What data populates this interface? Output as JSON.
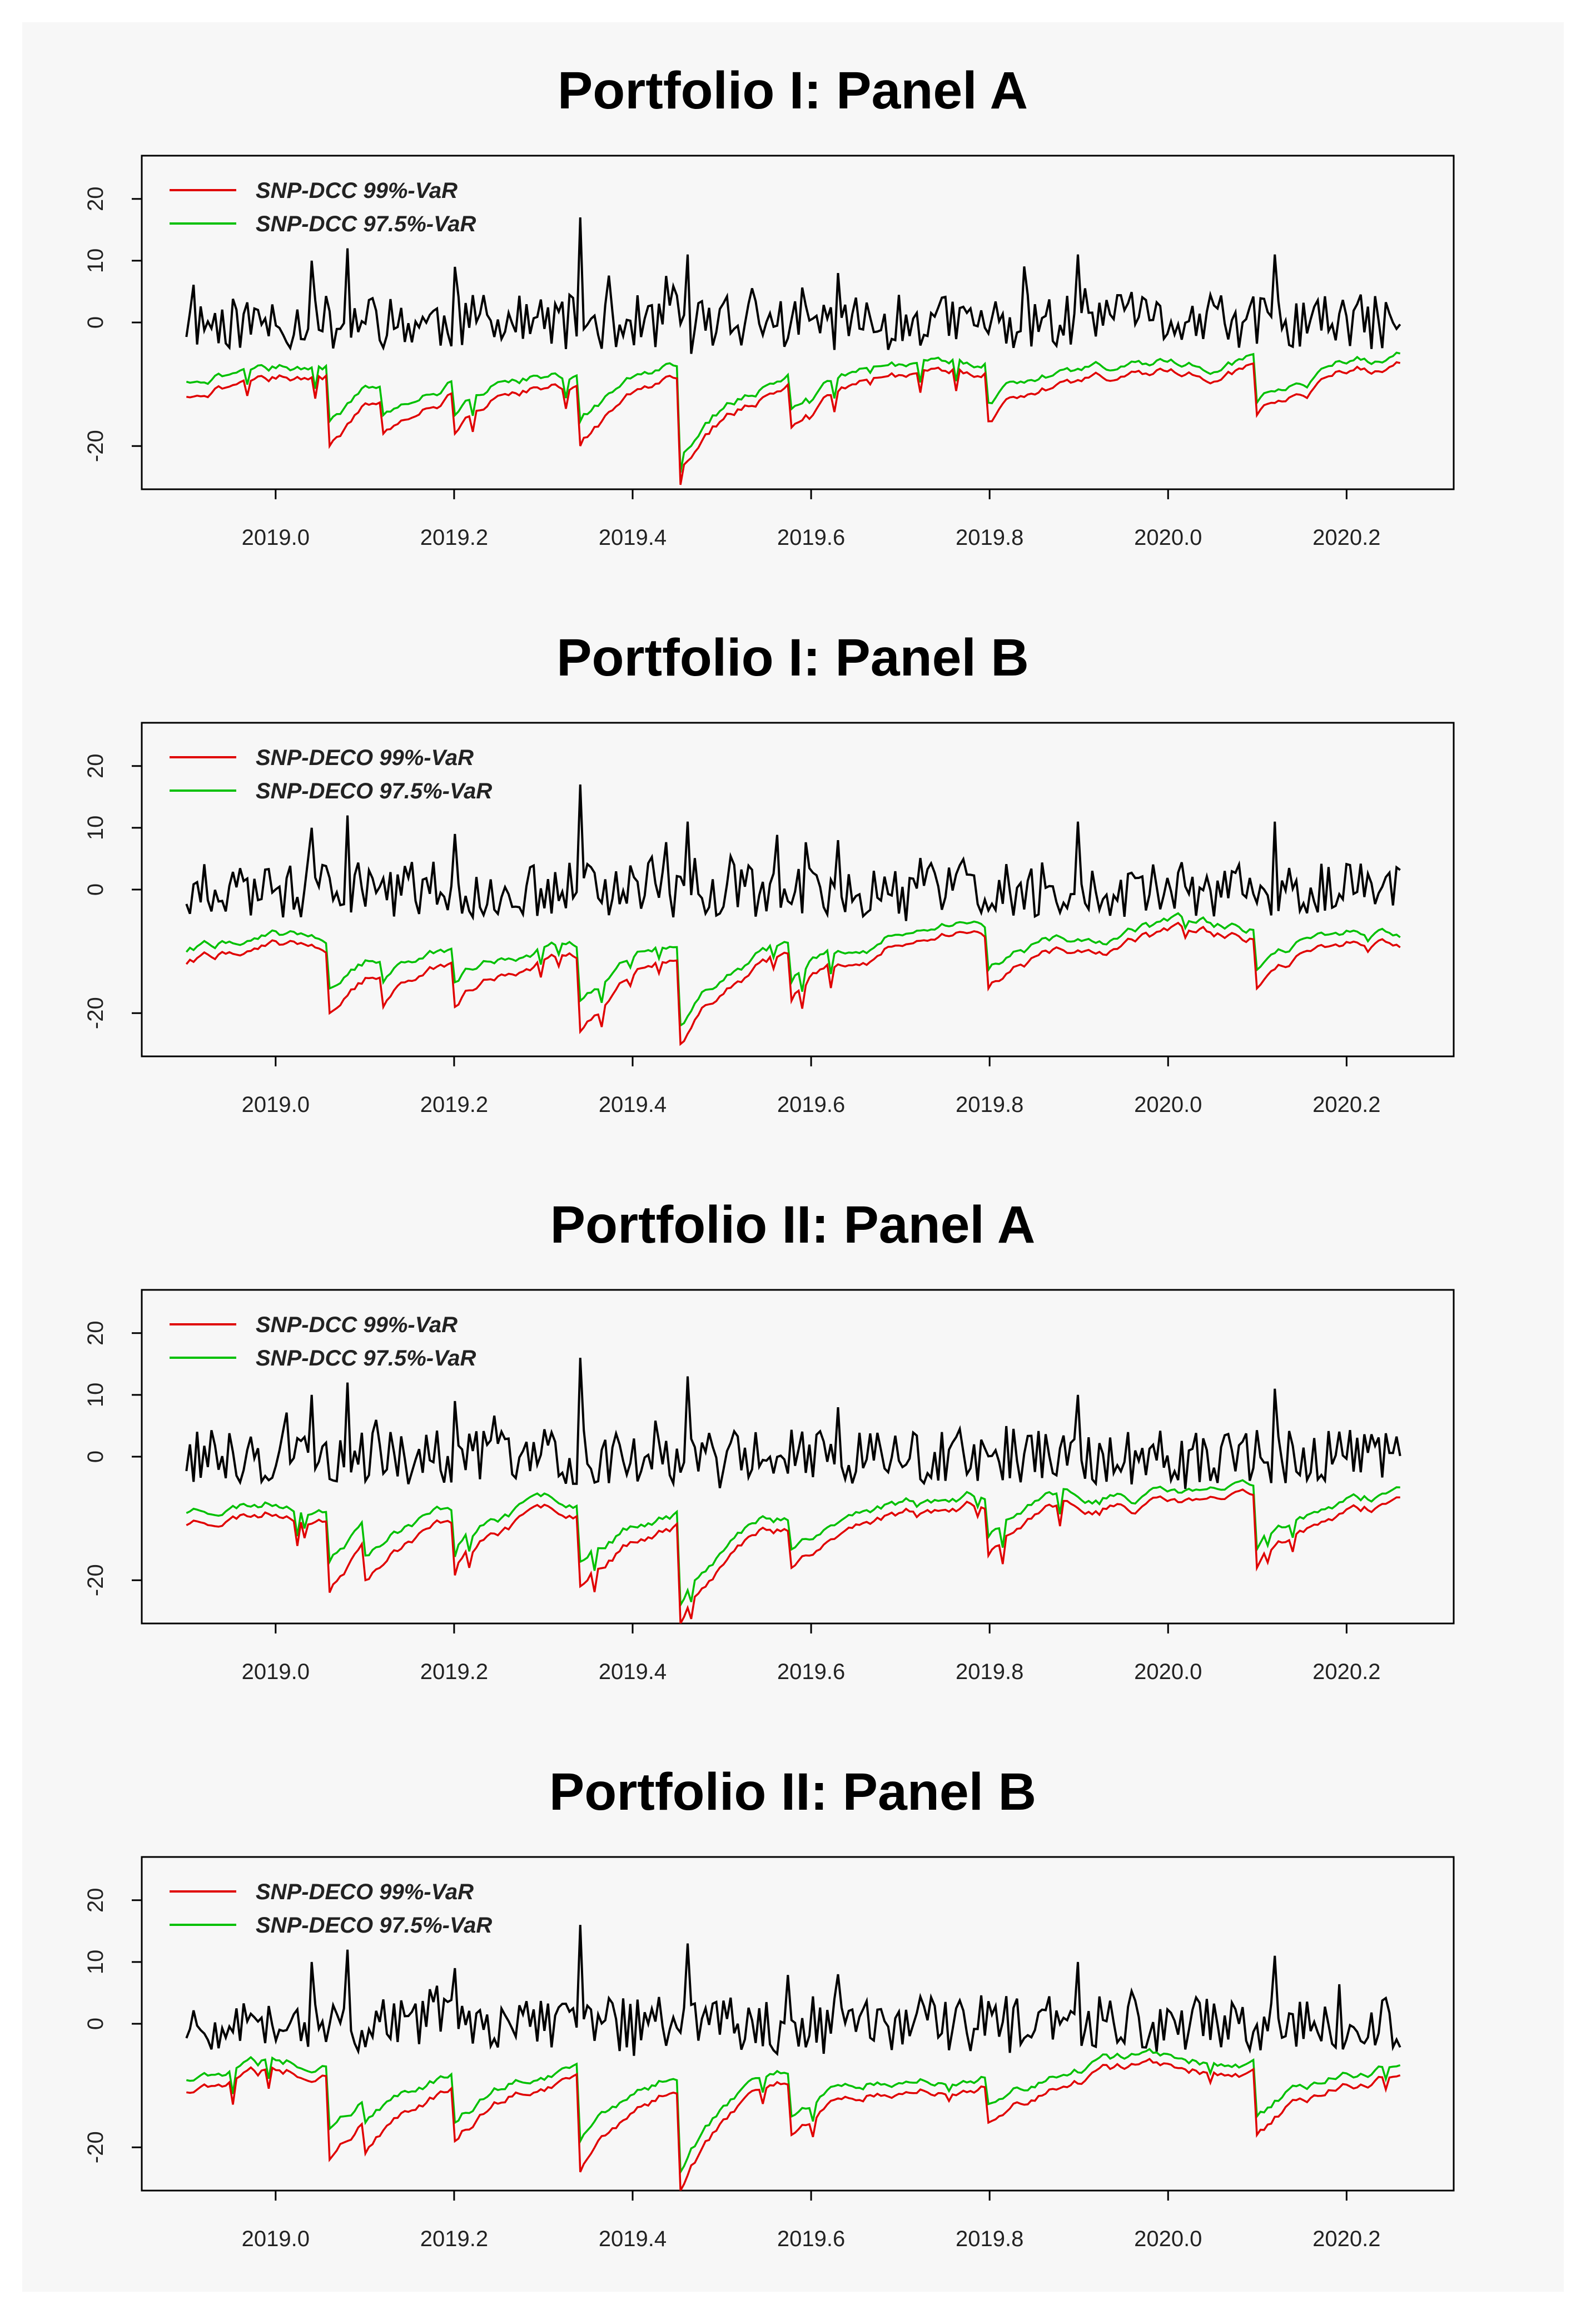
{
  "colors": {
    "returns": "#000000",
    "var99": "#e00000",
    "var975": "#00c000",
    "plot_bg": "#f7f7f7"
  },
  "chart_data": [
    {
      "type": "line",
      "title": "Portfolio I: Panel A",
      "xlabel": "",
      "ylabel": "",
      "xlim": [
        2018.85,
        2020.32
      ],
      "ylim": [
        -27,
        27
      ],
      "x_ticks": [
        "2019.0",
        "2019.2",
        "2019.4",
        "2019.6",
        "2019.8",
        "2020.0",
        "2020.2"
      ],
      "y_ticks": [
        "-20",
        "0",
        "10",
        "20"
      ],
      "legend": {
        "position": "top-left",
        "entries": [
          "SNP-DCC 99%-VaR",
          "SNP-DCC 97.5%-VaR"
        ]
      },
      "series": [
        {
          "key": "returns",
          "x_start": 2018.9,
          "x_end": 2020.26,
          "n": 340,
          "level": 0,
          "amp": 4.5,
          "seed": 11,
          "spikes": [
            [
              2019.04,
              10
            ],
            [
              2019.08,
              12
            ],
            [
              2019.2,
              9
            ],
            [
              2019.34,
              17
            ],
            [
              2019.46,
              11
            ],
            [
              2019.63,
              8
            ],
            [
              2019.9,
              11
            ],
            [
              2020.12,
              11
            ]
          ]
        },
        {
          "key": "var99",
          "x_start": 2018.9,
          "x_end": 2020.26,
          "n": 340,
          "base": -12,
          "recovery": -7.5,
          "seed": 21,
          "dips": [
            [
              2019.06,
              -20
            ],
            [
              2019.12,
              -18
            ],
            [
              2019.2,
              -18
            ],
            [
              2019.34,
              -20
            ],
            [
              2019.455,
              -24
            ],
            [
              2019.58,
              -17
            ],
            [
              2019.8,
              -16
            ],
            [
              2020.1,
              -15
            ]
          ]
        },
        {
          "key": "var975",
          "x_start": 2018.9,
          "x_end": 2020.26,
          "n": 340,
          "base": -9.5,
          "recovery": -6,
          "seed": 21,
          "dips": [
            [
              2019.06,
              -16
            ],
            [
              2019.12,
              -15
            ],
            [
              2019.2,
              -15
            ],
            [
              2019.34,
              -16
            ],
            [
              2019.455,
              -22
            ],
            [
              2019.58,
              -14
            ],
            [
              2019.8,
              -13
            ],
            [
              2020.1,
              -13
            ]
          ]
        }
      ]
    },
    {
      "type": "line",
      "title": "Portfolio I: Panel B",
      "xlabel": "",
      "ylabel": "",
      "xlim": [
        2018.85,
        2020.32
      ],
      "ylim": [
        -27,
        27
      ],
      "x_ticks": [
        "2019.0",
        "2019.2",
        "2019.4",
        "2019.6",
        "2019.8",
        "2020.0",
        "2020.2"
      ],
      "y_ticks": [
        "-20",
        "0",
        "10",
        "20"
      ],
      "legend": {
        "position": "top-left",
        "entries": [
          "SNP-DECO 99%-VaR",
          "SNP-DECO 97.5%-VaR"
        ]
      },
      "series": [
        {
          "key": "returns",
          "x_start": 2018.9,
          "x_end": 2020.26,
          "n": 340,
          "level": 0,
          "amp": 4.5,
          "seed": 12,
          "spikes": [
            [
              2019.04,
              10
            ],
            [
              2019.08,
              12
            ],
            [
              2019.2,
              9
            ],
            [
              2019.34,
              17
            ],
            [
              2019.46,
              11
            ],
            [
              2019.63,
              8
            ],
            [
              2019.9,
              11
            ],
            [
              2020.12,
              11
            ]
          ]
        },
        {
          "key": "var99",
          "x_start": 2018.9,
          "x_end": 2020.26,
          "n": 340,
          "base": -12,
          "recovery": -8,
          "seed": 22,
          "dips": [
            [
              2019.06,
              -20
            ],
            [
              2019.12,
              -19
            ],
            [
              2019.2,
              -19
            ],
            [
              2019.34,
              -23
            ],
            [
              2019.455,
              -25
            ],
            [
              2019.58,
              -18
            ],
            [
              2019.8,
              -16
            ],
            [
              2020.1,
              -16
            ]
          ]
        },
        {
          "key": "var975",
          "x_start": 2018.9,
          "x_end": 2020.26,
          "n": 340,
          "base": -10,
          "recovery": -6.5,
          "seed": 22,
          "dips": [
            [
              2019.06,
              -16
            ],
            [
              2019.12,
              -15
            ],
            [
              2019.2,
              -15
            ],
            [
              2019.34,
              -18
            ],
            [
              2019.455,
              -22
            ],
            [
              2019.58,
              -15
            ],
            [
              2019.8,
              -13
            ],
            [
              2020.1,
              -13
            ]
          ]
        }
      ]
    },
    {
      "type": "line",
      "title": "Portfolio II: Panel A",
      "xlabel": "",
      "ylabel": "",
      "xlim": [
        2018.85,
        2020.32
      ],
      "ylim": [
        -27,
        27
      ],
      "x_ticks": [
        "2019.0",
        "2019.2",
        "2019.4",
        "2019.6",
        "2019.8",
        "2020.0",
        "2020.2"
      ],
      "y_ticks": [
        "-20",
        "0",
        "10",
        "20"
      ],
      "legend": {
        "position": "top-left",
        "entries": [
          "SNP-DCC 99%-VaR",
          "SNP-DCC 97.5%-VaR"
        ]
      },
      "series": [
        {
          "key": "returns",
          "x_start": 2018.9,
          "x_end": 2020.26,
          "n": 340,
          "level": 0,
          "amp": 4.5,
          "seed": 13,
          "spikes": [
            [
              2019.04,
              10
            ],
            [
              2019.08,
              12
            ],
            [
              2019.2,
              9
            ],
            [
              2019.34,
              16
            ],
            [
              2019.46,
              13
            ],
            [
              2019.63,
              8
            ],
            [
              2019.9,
              10
            ],
            [
              2020.12,
              11
            ]
          ]
        },
        {
          "key": "var99",
          "x_start": 2018.9,
          "x_end": 2020.26,
          "n": 340,
          "base": -11,
          "recovery": -7.5,
          "seed": 23,
          "dips": [
            [
              2019.06,
              -22
            ],
            [
              2019.1,
              -20
            ],
            [
              2019.2,
              -18
            ],
            [
              2019.34,
              -21
            ],
            [
              2019.455,
              -27
            ],
            [
              2019.58,
              -18
            ],
            [
              2019.8,
              -16
            ],
            [
              2020.1,
              -18
            ]
          ]
        },
        {
          "key": "var975",
          "x_start": 2018.9,
          "x_end": 2020.26,
          "n": 340,
          "base": -9,
          "recovery": -6,
          "seed": 23,
          "dips": [
            [
              2019.06,
              -17
            ],
            [
              2019.1,
              -16
            ],
            [
              2019.2,
              -15
            ],
            [
              2019.34,
              -17
            ],
            [
              2019.455,
              -24
            ],
            [
              2019.58,
              -15
            ],
            [
              2019.8,
              -13
            ],
            [
              2020.1,
              -15
            ]
          ]
        }
      ]
    },
    {
      "type": "line",
      "title": "Portfolio II: Panel B",
      "xlabel": "",
      "ylabel": "",
      "xlim": [
        2018.85,
        2020.32
      ],
      "ylim": [
        -27,
        27
      ],
      "x_ticks": [
        "2019.0",
        "2019.2",
        "2019.4",
        "2019.6",
        "2019.8",
        "2020.0",
        "2020.2"
      ],
      "y_ticks": [
        "-20",
        "0",
        "10",
        "20"
      ],
      "legend": {
        "position": "top-left",
        "entries": [
          "SNP-DECO 99%-VaR",
          "SNP-DECO 97.5%-VaR"
        ]
      },
      "series": [
        {
          "key": "returns",
          "x_start": 2018.9,
          "x_end": 2020.26,
          "n": 340,
          "level": 0,
          "amp": 4.5,
          "seed": 14,
          "spikes": [
            [
              2019.04,
              10
            ],
            [
              2019.08,
              12
            ],
            [
              2019.2,
              9
            ],
            [
              2019.34,
              16
            ],
            [
              2019.46,
              13
            ],
            [
              2019.63,
              8
            ],
            [
              2019.9,
              10
            ],
            [
              2020.12,
              11
            ]
          ]
        },
        {
          "key": "var99",
          "x_start": 2018.9,
          "x_end": 2020.26,
          "n": 340,
          "base": -11,
          "recovery": -7.5,
          "seed": 24,
          "dips": [
            [
              2019.06,
              -22
            ],
            [
              2019.1,
              -21
            ],
            [
              2019.2,
              -19
            ],
            [
              2019.34,
              -24
            ],
            [
              2019.455,
              -27
            ],
            [
              2019.58,
              -18
            ],
            [
              2019.8,
              -16
            ],
            [
              2020.1,
              -18
            ]
          ]
        },
        {
          "key": "var975",
          "x_start": 2018.9,
          "x_end": 2020.26,
          "n": 340,
          "base": -9,
          "recovery": -6,
          "seed": 24,
          "dips": [
            [
              2019.06,
              -17
            ],
            [
              2019.1,
              -16
            ],
            [
              2019.2,
              -16
            ],
            [
              2019.34,
              -19
            ],
            [
              2019.455,
              -24
            ],
            [
              2019.58,
              -15
            ],
            [
              2019.8,
              -13
            ],
            [
              2020.1,
              -15
            ]
          ]
        }
      ]
    }
  ]
}
